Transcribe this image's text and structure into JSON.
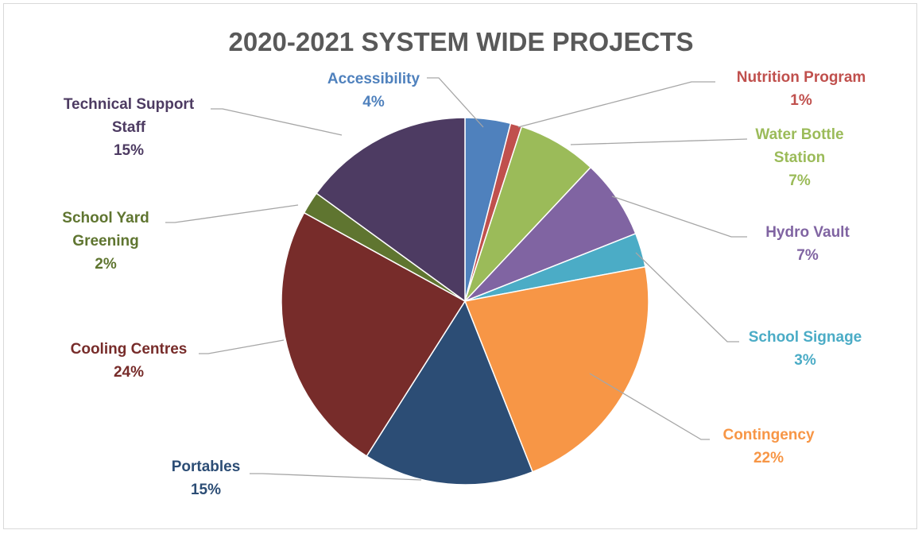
{
  "chart_data": {
    "type": "pie",
    "title": "2020-2021 SYSTEM WIDE PROJECTS",
    "slices": [
      {
        "label": [
          "Accessibility"
        ],
        "pct_label": "4%",
        "value": 4,
        "color": "#4F81BD",
        "label_color": "#4F81BD"
      },
      {
        "label": [
          "Nutrition Program"
        ],
        "pct_label": "1%",
        "value": 1,
        "color": "#C0504D",
        "label_color": "#C0504D"
      },
      {
        "label": [
          "Water Bottle",
          "Station"
        ],
        "pct_label": "7%",
        "value": 7,
        "color": "#9BBB59",
        "label_color": "#9BBB59"
      },
      {
        "label": [
          "Hydro Vault"
        ],
        "pct_label": "7%",
        "value": 7,
        "color": "#8064A2",
        "label_color": "#8064A2"
      },
      {
        "label": [
          "School Signage"
        ],
        "pct_label": "3%",
        "value": 3,
        "color": "#4BACC6",
        "label_color": "#4BACC6"
      },
      {
        "label": [
          "Contingency"
        ],
        "pct_label": "22%",
        "value": 22,
        "color": "#F79646",
        "label_color": "#F79646"
      },
      {
        "label": [
          "Portables"
        ],
        "pct_label": "15%",
        "value": 15,
        "color": "#2C4D75",
        "label_color": "#2C4D75"
      },
      {
        "label": [
          "Cooling Centres"
        ],
        "pct_label": "24%",
        "value": 24,
        "color": "#772C2A",
        "label_color": "#772C2A"
      },
      {
        "label": [
          "School Yard",
          "Greening"
        ],
        "pct_label": "2%",
        "value": 2,
        "color": "#5F7530",
        "label_color": "#5F7530"
      },
      {
        "label": [
          "Technical Support",
          "Staff"
        ],
        "pct_label": "15%",
        "value": 15,
        "color": "#4D3B62",
        "label_color": "#4D3B62"
      }
    ],
    "start_angle_deg": 0,
    "direction": "clockwise"
  }
}
